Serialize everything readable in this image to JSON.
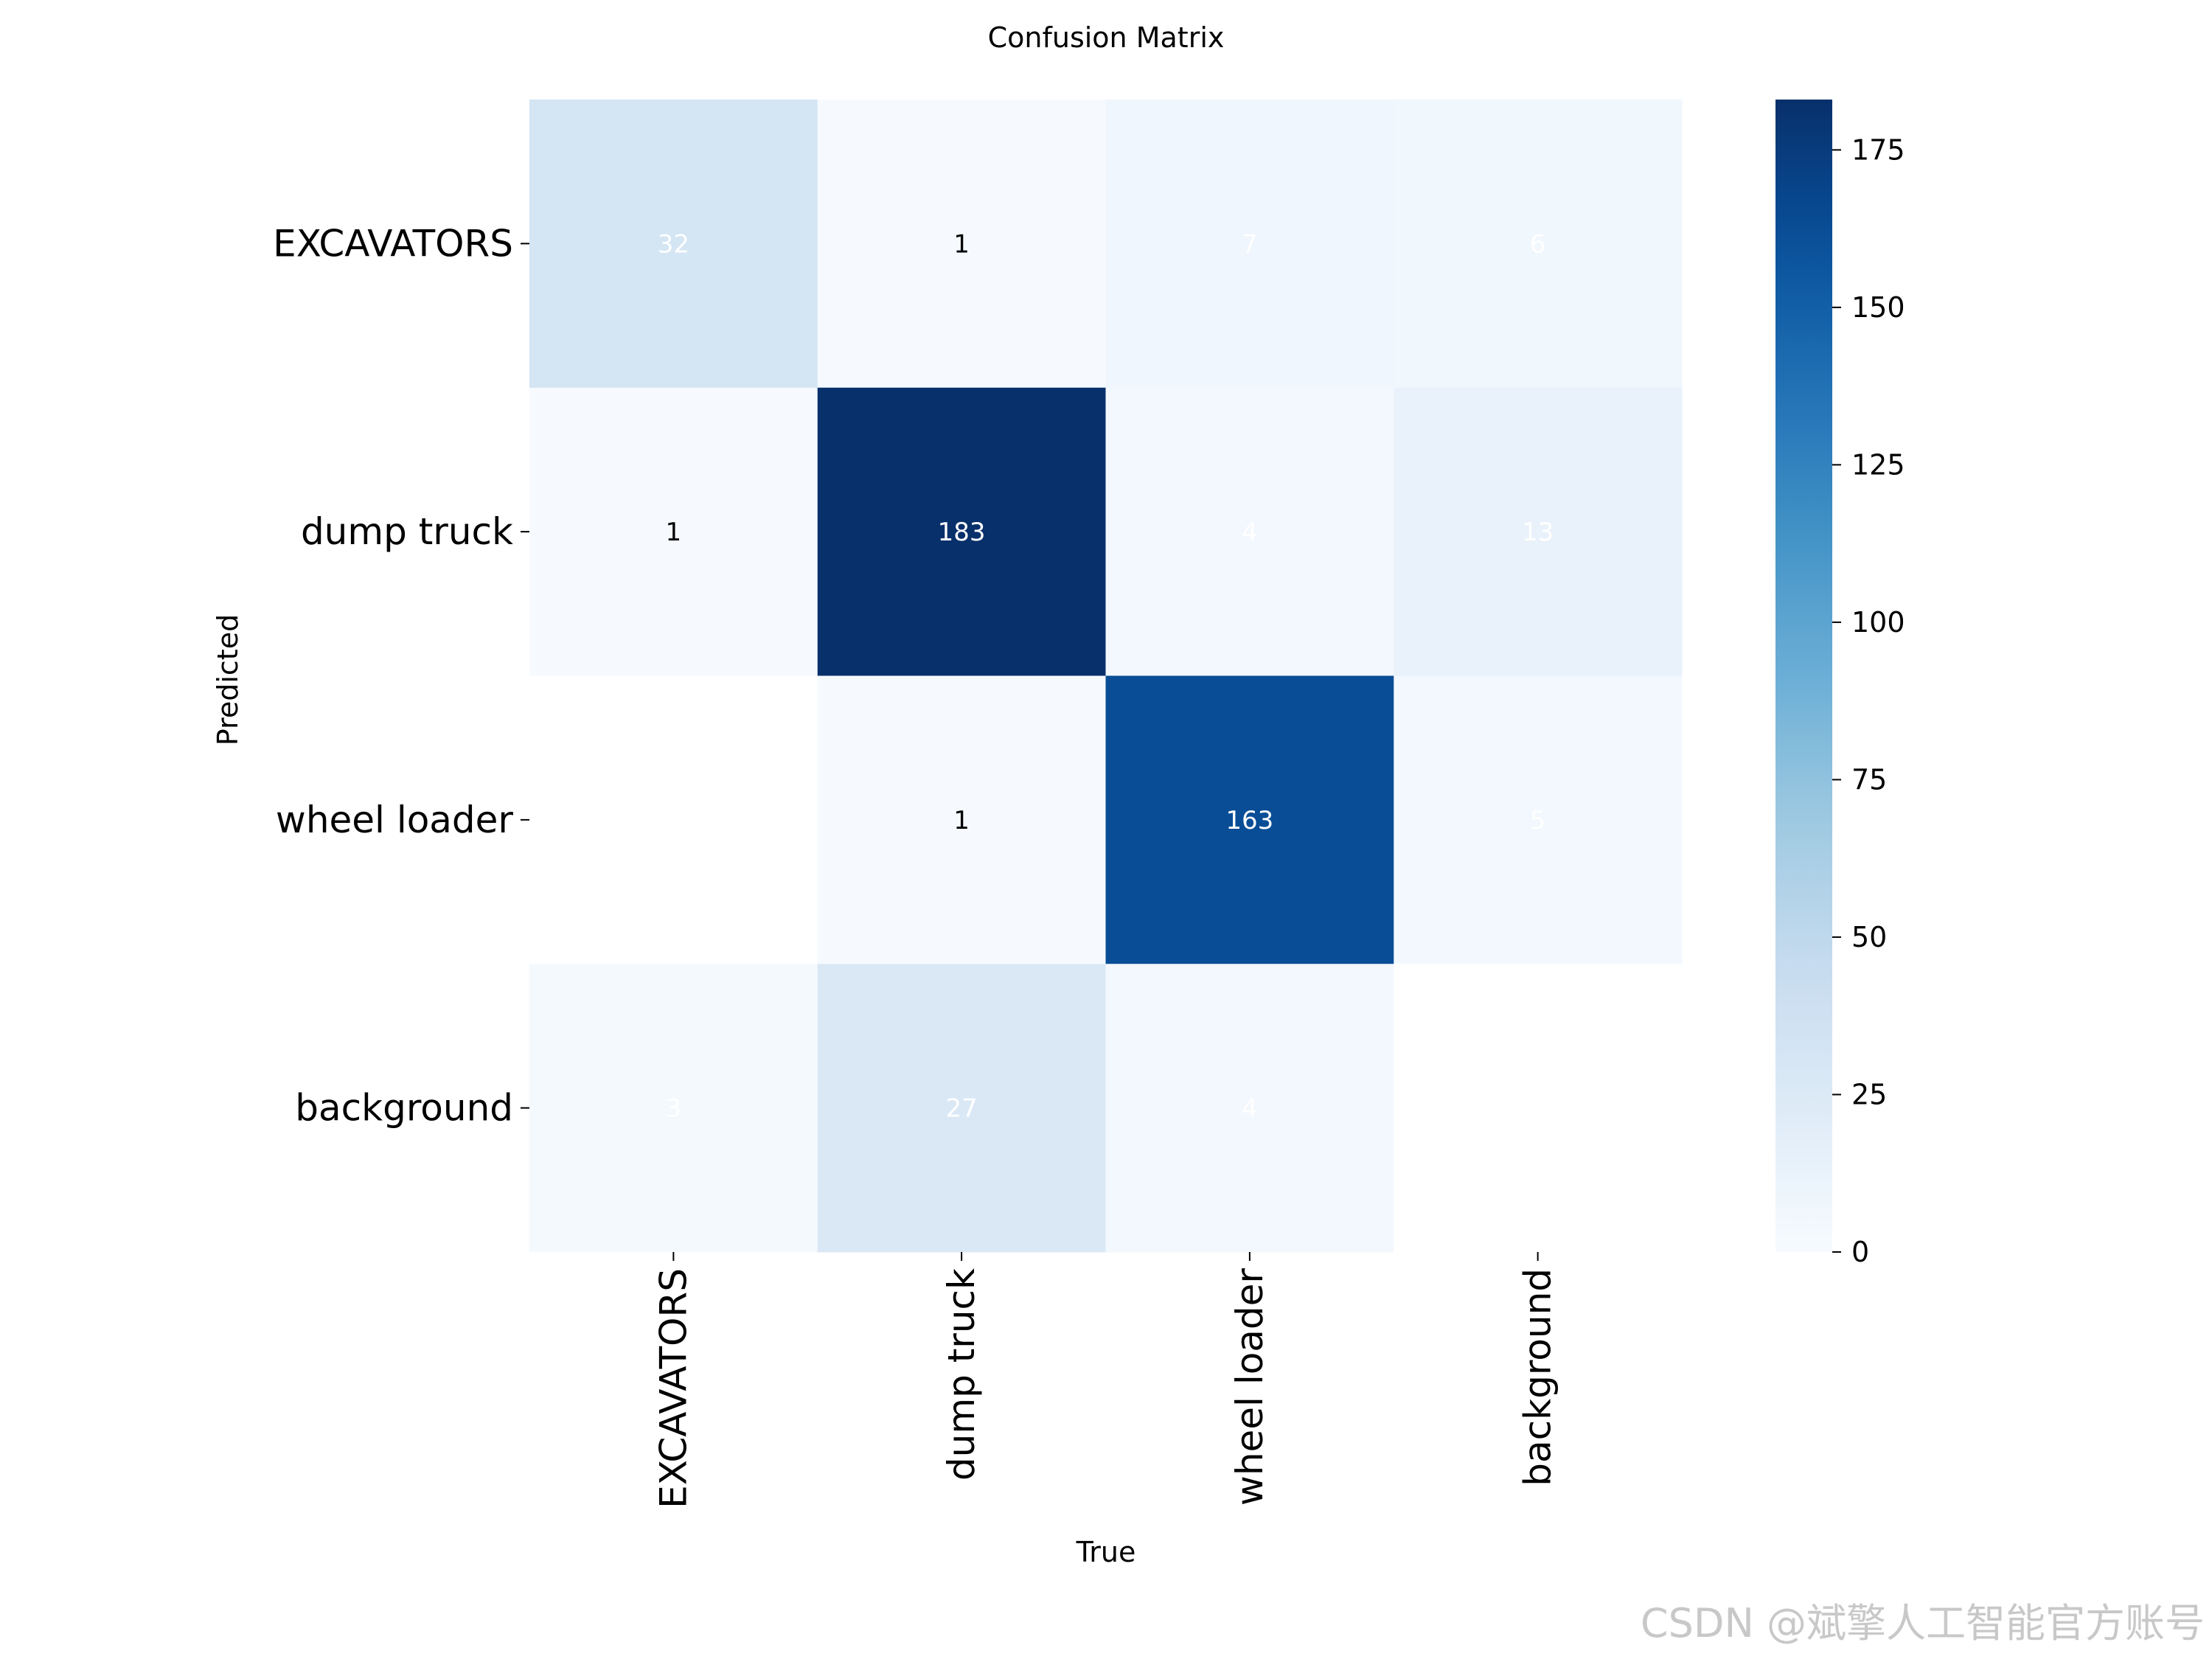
{
  "chart_data": {
    "type": "heatmap",
    "title": "Confusion Matrix",
    "xlabel": "True",
    "ylabel": "Predicted",
    "x_categories": [
      "EXCAVATORS",
      "dump truck",
      "wheel loader",
      "background"
    ],
    "y_categories": [
      "EXCAVATORS",
      "dump truck",
      "wheel loader",
      "background"
    ],
    "values": [
      [
        32,
        1,
        7,
        6
      ],
      [
        1,
        183,
        4,
        13
      ],
      [
        null,
        1,
        163,
        5
      ],
      [
        3,
        27,
        4,
        null
      ]
    ],
    "colormap": "Blues",
    "color_range": [
      0,
      183
    ],
    "colorbar_ticks": [
      0,
      25,
      50,
      75,
      100,
      125,
      150,
      175
    ],
    "annotation_colors": {
      "dark_text": "#000000",
      "light_text": "#ffffff"
    }
  },
  "watermark": "CSDN @斌擎人工智能官方账号"
}
